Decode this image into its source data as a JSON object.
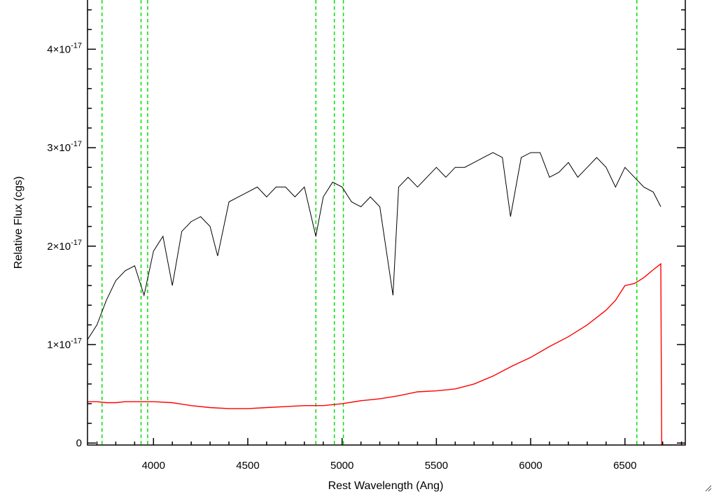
{
  "chart_data": {
    "type": "line",
    "title": "",
    "xlabel": "Rest Wavelength (Ang)",
    "ylabel": "Relative Flux (cgs)",
    "xlim": [
      3650,
      6820
    ],
    "ylim": [
      -2e-19,
      4.5e-17
    ],
    "x_ticks": [
      {
        "value": 4000,
        "label": "4000"
      },
      {
        "value": 4500,
        "label": "4500"
      },
      {
        "value": 5000,
        "label": "5000"
      },
      {
        "value": 5500,
        "label": "5500"
      },
      {
        "value": 6000,
        "label": "6000"
      },
      {
        "value": 6500,
        "label": "6500"
      }
    ],
    "y_ticks": [
      {
        "value": 0,
        "label": "0",
        "mantissa": "",
        "exponent": ""
      },
      {
        "value": 1e-17,
        "label": "1×10-17",
        "mantissa": "1×10",
        "exponent": "-17"
      },
      {
        "value": 2e-17,
        "label": "2×10-17",
        "mantissa": "2×10",
        "exponent": "-17"
      },
      {
        "value": 3e-17,
        "label": "3×10-17",
        "mantissa": "3×10",
        "exponent": "-17"
      },
      {
        "value": 4e-17,
        "label": "4×10-17",
        "mantissa": "4×10",
        "exponent": "-17"
      }
    ],
    "grid": false,
    "vertical_lines": {
      "color": "#00e000",
      "style": "dashed",
      "x": [
        3727,
        3934,
        3969,
        4861,
        4959,
        5007,
        6563
      ]
    },
    "series": [
      {
        "color": "#000000",
        "points": [
          [
            3650,
            1.05e-17
          ],
          [
            3700,
            1.2e-17
          ],
          [
            3750,
            1.45e-17
          ],
          [
            3800,
            1.65e-17
          ],
          [
            3850,
            1.75e-17
          ],
          [
            3900,
            1.8e-17
          ],
          [
            3950,
            1.5e-17
          ],
          [
            4000,
            1.95e-17
          ],
          [
            4050,
            2.1e-17
          ],
          [
            4100,
            1.6e-17
          ],
          [
            4150,
            2.15e-17
          ],
          [
            4200,
            2.25e-17
          ],
          [
            4250,
            2.3e-17
          ],
          [
            4300,
            2.2e-17
          ],
          [
            4340,
            1.9e-17
          ],
          [
            4400,
            2.45e-17
          ],
          [
            4450,
            2.5e-17
          ],
          [
            4500,
            2.55e-17
          ],
          [
            4550,
            2.6e-17
          ],
          [
            4600,
            2.5e-17
          ],
          [
            4650,
            2.6e-17
          ],
          [
            4700,
            2.6e-17
          ],
          [
            4750,
            2.5e-17
          ],
          [
            4800,
            2.6e-17
          ],
          [
            4861,
            2.1e-17
          ],
          [
            4900,
            2.5e-17
          ],
          [
            4950,
            2.65e-17
          ],
          [
            5000,
            2.6e-17
          ],
          [
            5050,
            2.45e-17
          ],
          [
            5100,
            2.4e-17
          ],
          [
            5150,
            2.5e-17
          ],
          [
            5200,
            2.4e-17
          ],
          [
            5270,
            1.5e-17
          ],
          [
            5300,
            2.6e-17
          ],
          [
            5350,
            2.7e-17
          ],
          [
            5400,
            2.6e-17
          ],
          [
            5450,
            2.7e-17
          ],
          [
            5500,
            2.8e-17
          ],
          [
            5550,
            2.7e-17
          ],
          [
            5600,
            2.8e-17
          ],
          [
            5650,
            2.8e-17
          ],
          [
            5700,
            2.85e-17
          ],
          [
            5750,
            2.9e-17
          ],
          [
            5800,
            2.95e-17
          ],
          [
            5850,
            2.9e-17
          ],
          [
            5893,
            2.3e-17
          ],
          [
            5950,
            2.9e-17
          ],
          [
            6000,
            2.95e-17
          ],
          [
            6050,
            2.95e-17
          ],
          [
            6100,
            2.7e-17
          ],
          [
            6150,
            2.75e-17
          ],
          [
            6200,
            2.85e-17
          ],
          [
            6250,
            2.7e-17
          ],
          [
            6300,
            2.8e-17
          ],
          [
            6350,
            2.9e-17
          ],
          [
            6400,
            2.8e-17
          ],
          [
            6450,
            2.6e-17
          ],
          [
            6500,
            2.8e-17
          ],
          [
            6550,
            2.7e-17
          ],
          [
            6600,
            2.6e-17
          ],
          [
            6650,
            2.55e-17
          ],
          [
            6690,
            2.4e-17
          ]
        ]
      },
      {
        "color": "#ff0000",
        "points": [
          [
            3650,
            4.2e-18
          ],
          [
            3700,
            4.2e-18
          ],
          [
            3750,
            4.1e-18
          ],
          [
            3800,
            4.1e-18
          ],
          [
            3850,
            4.2e-18
          ],
          [
            3900,
            4.2e-18
          ],
          [
            3950,
            4.2e-18
          ],
          [
            4000,
            4.2e-18
          ],
          [
            4100,
            4.1e-18
          ],
          [
            4200,
            3.8e-18
          ],
          [
            4300,
            3.6e-18
          ],
          [
            4400,
            3.5e-18
          ],
          [
            4500,
            3.5e-18
          ],
          [
            4600,
            3.6e-18
          ],
          [
            4700,
            3.7e-18
          ],
          [
            4800,
            3.8e-18
          ],
          [
            4900,
            3.8e-18
          ],
          [
            5000,
            4e-18
          ],
          [
            5100,
            4.3e-18
          ],
          [
            5200,
            4.5e-18
          ],
          [
            5300,
            4.8e-18
          ],
          [
            5400,
            5.2e-18
          ],
          [
            5500,
            5.3e-18
          ],
          [
            5600,
            5.5e-18
          ],
          [
            5700,
            6e-18
          ],
          [
            5800,
            6.8e-18
          ],
          [
            5900,
            7.8e-18
          ],
          [
            6000,
            8.7e-18
          ],
          [
            6100,
            9.8e-18
          ],
          [
            6200,
            1.08e-17
          ],
          [
            6300,
            1.2e-17
          ],
          [
            6400,
            1.35e-17
          ],
          [
            6450,
            1.45e-17
          ],
          [
            6500,
            1.6e-17
          ],
          [
            6550,
            1.62e-17
          ],
          [
            6600,
            1.68e-17
          ],
          [
            6650,
            1.76e-17
          ],
          [
            6690,
            1.82e-17
          ],
          [
            6695,
            -2e-19
          ],
          [
            6820,
            -2e-19
          ]
        ]
      }
    ]
  }
}
